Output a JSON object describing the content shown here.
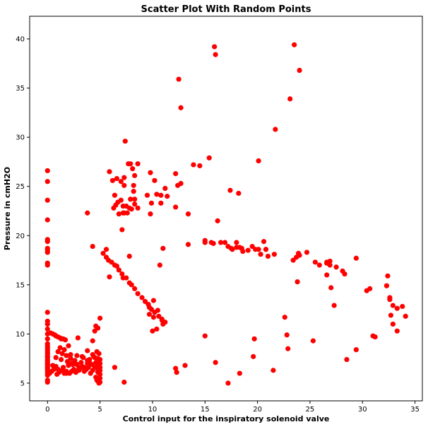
{
  "chart_data": {
    "type": "scatter",
    "title": "Scatter Plot With Random Points",
    "xlabel": "Control input for the inspiratory solenoid valve",
    "ylabel": "Pressure in cmH2O",
    "xlim": [
      -1.7,
      35.7
    ],
    "ylim": [
      3.2,
      42.3
    ],
    "xticks": [
      0,
      5,
      10,
      15,
      20,
      25,
      30,
      35
    ],
    "yticks": [
      5,
      10,
      15,
      20,
      25,
      30,
      35,
      40
    ],
    "grid": false,
    "marker_color": "#ff0000",
    "series": [
      {
        "x": [
          0,
          0,
          0,
          0,
          0,
          0,
          0,
          0,
          0,
          0,
          0,
          0,
          0,
          0,
          0,
          0,
          0,
          0,
          0,
          0,
          0,
          0,
          0,
          0,
          0,
          0,
          0,
          0,
          0,
          0,
          0,
          0,
          0,
          0,
          0,
          0,
          0,
          0,
          0,
          0,
          0.3,
          0.5,
          0.7,
          0.8,
          1.0,
          1.2,
          1.3,
          1.5,
          1.7,
          1.9,
          2.0,
          2.2,
          2.4,
          2.6,
          2.8,
          3.0,
          3.2,
          3.4,
          3.6,
          3.8,
          4.0,
          4.2,
          4.4,
          4.6,
          4.8,
          0.2,
          0.4,
          0.6,
          0.9,
          1.1,
          1.4,
          1.6,
          1.8,
          2.1,
          2.3,
          2.5,
          2.7,
          2.9,
          3.1,
          3.3,
          3.5,
          3.7,
          3.9,
          4.1,
          4.3,
          4.5,
          4.7,
          4.9,
          0.5,
          1.0,
          1.5,
          2.0,
          2.5,
          3.0,
          3.5,
          4.0,
          4.5,
          5.0,
          0.8,
          1.8,
          2.8,
          3.8,
          4.8,
          1.3,
          2.3,
          3.3,
          4.3,
          4.6,
          4.7,
          4.8,
          4.9,
          5.0,
          5.0,
          5.0,
          5.0,
          5.0,
          5.0,
          4.9,
          4.8,
          4.7,
          0.8,
          1.0,
          1.2,
          1.4,
          1.6,
          1.8,
          2.0,
          2.2,
          2.9,
          4.3,
          4.5,
          4.8,
          5.0,
          4.6,
          3.8,
          4.3,
          5.3,
          5.6,
          5.8,
          6.1,
          6.4,
          6.8,
          7.1,
          7.5,
          7.8,
          8.0,
          8.3,
          8.6,
          9.0,
          9.3,
          9.6,
          9.9,
          10.2,
          10.6,
          10.9,
          11.2,
          5.9,
          6.2,
          6.6,
          7.0,
          7.3,
          7.6,
          8.0,
          8.6,
          9.5,
          10.8,
          11.4,
          12.2,
          12.7,
          14.5,
          12.2,
          13.4,
          3.8,
          6.3,
          6.5,
          6.7,
          7.0,
          7.3,
          7.5,
          7.8,
          7.9,
          8.2,
          8.3,
          8.6,
          9.8,
          9.9,
          10.2,
          10.4,
          10.8,
          11.2,
          12.4,
          7.4,
          7.7,
          7.9,
          8.1,
          8.3,
          5.9,
          6.6,
          7.1,
          7.8,
          7.2,
          7.2,
          6.8,
          7.2,
          9.8,
          8.2,
          8.3,
          6.4,
          7.3,
          5.6,
          10.7,
          11.0,
          13.4,
          15.0,
          15.8,
          16.5,
          17.2,
          17.6,
          18.0,
          18.3,
          18.6,
          19.1,
          19.8,
          20.3,
          20.6,
          20.8,
          21.6,
          15.0,
          15.6,
          16.2,
          16.9,
          17.5,
          18.0,
          18.5,
          19.5,
          20.1,
          20.8,
          21.0,
          23.4,
          23.7,
          23.9,
          24.7,
          25.5,
          25.9,
          26.6,
          26.9,
          26.9,
          27.5,
          28.1,
          28.3,
          29.4,
          23.8,
          24.0,
          26.6,
          26.6,
          27.0,
          27.3,
          32.3,
          32.4,
          32.6,
          32.9,
          33.3,
          33.8,
          34.1,
          32.6,
          32.7,
          32.9,
          33.3,
          31.0,
          31.2,
          30.7,
          30.4,
          29.4,
          28.5,
          19.7,
          22.6,
          22.8,
          22.9,
          25.3,
          15.0,
          16.0,
          19.6,
          21.5,
          18.3,
          17.2,
          12.5,
          12.7,
          13.9,
          15.4,
          16.0,
          15.9,
          20.1,
          21.7,
          23.1,
          23.5,
          24.0,
          17.4,
          18.2,
          10.1,
          9.7,
          10.5,
          7.3,
          12.2,
          12.3,
          13.1,
          4.8,
          6.4,
          11.0,
          10.9,
          10.1,
          10.0,
          9.7,
          10.4
        ],
        "y": [
          5.1,
          5.3,
          5.8,
          6.0,
          6.2,
          6.4,
          6.6,
          6.8,
          7.0,
          7.2,
          7.4,
          7.6,
          7.8,
          8.0,
          8.2,
          8.4,
          8.6,
          8.8,
          9.0,
          9.5,
          10.0,
          10.5,
          11.0,
          11.3,
          12.2,
          17.0,
          17.2,
          18.3,
          18.5,
          18.7,
          19.4,
          19.6,
          21.6,
          23.6,
          25.5,
          26.6,
          6.5,
          6.9,
          7.3,
          7.7,
          10.1,
          10.0,
          9.9,
          9.8,
          9.7,
          9.6,
          9.5,
          9.5,
          9.4,
          7.2,
          6.8,
          7.5,
          6.9,
          7.3,
          7.8,
          6.6,
          7.1,
          7.6,
          6.4,
          7.0,
          7.4,
          6.9,
          7.7,
          7.1,
          6.5,
          6.0,
          6.2,
          6.4,
          5.9,
          6.1,
          6.3,
          6.0,
          6.2,
          6.0,
          6.2,
          6.4,
          6.1,
          6.3,
          6.5,
          6.7,
          6.2,
          6.4,
          6.6,
          6.0,
          6.3,
          6.6,
          6.9,
          7.2,
          6.8,
          6.4,
          6.6,
          6.9,
          7.0,
          6.3,
          6.6,
          7.1,
          7.6,
          7.4,
          6.7,
          6.0,
          6.9,
          7.3,
          6.2,
          7.4,
          7.0,
          7.7,
          7.9,
          5.6,
          5.3,
          5.2,
          5.0,
          5.1,
          5.5,
          5.9,
          6.3,
          6.6,
          7.0,
          8.0,
          7.5,
          8.2,
          7.6,
          8.2,
          8.6,
          8.0,
          8.4,
          7.8,
          8.8,
          7.9,
          9.6,
          9.3,
          10.3,
          10.6,
          11.6,
          10.8,
          8.3,
          18.9,
          18.2,
          17.8,
          17.5,
          17.3,
          17.0,
          16.5,
          16.1,
          15.7,
          15.2,
          15.0,
          14.6,
          14.1,
          13.7,
          13.3,
          13.0,
          12.5,
          12.2,
          11.8,
          11.5,
          11.2,
          26.5,
          25.6,
          25.8,
          25.5,
          25.1,
          22.3,
          22.7,
          22.8,
          24.1,
          24.1,
          24.0,
          26.3,
          25.3,
          27.1,
          22.9,
          22.2,
          22.3,
          22.8,
          23.1,
          23.4,
          23.6,
          22.3,
          23.0,
          22.8,
          23.7,
          25.1,
          26.1,
          27.3,
          26.4,
          23.3,
          25.6,
          24.2,
          23.3,
          24.8,
          25.1,
          29.6,
          27.3,
          27.3,
          26.8,
          23.7,
          15.8,
          16.9,
          20.6,
          17.9,
          22.3,
          15.7,
          22.2,
          23.0,
          22.2,
          24.5,
          23.2,
          24.1,
          25.9,
          18.6,
          17.0,
          18.7,
          19.1,
          19.5,
          19.2,
          19.3,
          18.9,
          18.6,
          19.3,
          18.8,
          18.4,
          18.5,
          18.6,
          18.1,
          19.4,
          18.6,
          18.1,
          19.3,
          19.3,
          21.5,
          19.3,
          18.7,
          18.8,
          18.7,
          18.9,
          18.6,
          18.6,
          17.9,
          17.5,
          17.8,
          18.2,
          18.3,
          17.3,
          17.0,
          17.2,
          17.0,
          17.4,
          16.8,
          16.4,
          16.1,
          17.7,
          15.3,
          18.0,
          17.3,
          16.0,
          14.7,
          12.9,
          14.9,
          15.9,
          13.5,
          12.9,
          12.6,
          12.8,
          11.8,
          13.7,
          11.9,
          11.0,
          10.3,
          9.8,
          9.7,
          14.6,
          14.4,
          8.4,
          7.4,
          9.5,
          11.7,
          9.9,
          8.5,
          9.3,
          9.8,
          7.1,
          7.7,
          6.3,
          6.0,
          5.0,
          35.9,
          33.0,
          27.2,
          27.9,
          38.4,
          39.2,
          27.6,
          30.8,
          33.9,
          39.4,
          36.8,
          24.6,
          24.3,
          13.4,
          12.7,
          12.4,
          5.1,
          6.5,
          6.1,
          6.8,
          6.1,
          6.6,
          11.0,
          11.4,
          11.7,
          10.3,
          12.0,
          10.5
        ]
      }
    ]
  }
}
